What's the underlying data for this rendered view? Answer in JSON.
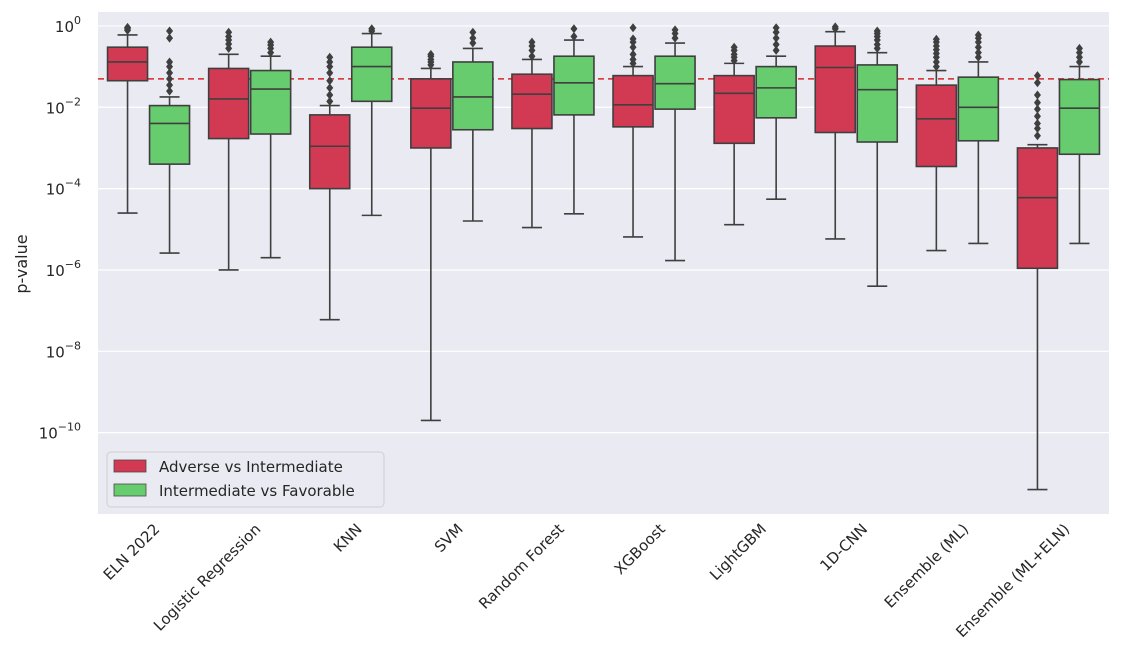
{
  "chart_data": {
    "type": "box",
    "ylabel": "p-value",
    "yscale": "log",
    "ylim": [
      1e-12,
      2.2
    ],
    "yticks": [
      {
        "value": 1,
        "base": "10",
        "exp": "0"
      },
      {
        "value": 0.01,
        "base": "10",
        "exp": "−2"
      },
      {
        "value": 0.0001,
        "base": "10",
        "exp": "−4"
      },
      {
        "value": 1e-06,
        "base": "10",
        "exp": "−6"
      },
      {
        "value": 1e-08,
        "base": "10",
        "exp": "−8"
      },
      {
        "value": 1e-10,
        "base": "10",
        "exp": "−10"
      }
    ],
    "reference_line": {
      "value": 0.05,
      "color": "#d62728",
      "style": "dashed"
    },
    "grid": true,
    "legend_position": "lower-left",
    "categories": [
      "ELN 2022",
      "Logistic Regression",
      "KNN",
      "SVM",
      "Random Forest",
      "XGBoost",
      "LightGBM",
      "1D-CNN",
      "Ensemble (ML)",
      "Ensemble (ML+ELN)"
    ],
    "series": [
      {
        "name": "Adverse vs Intermediate",
        "color": "#d23a53",
        "boxes": [
          {
            "whislo": 2.5e-05,
            "q1": 0.045,
            "med": 0.13,
            "q3": 0.3,
            "whishi": 0.6,
            "fliers": [
              0.78,
              0.85,
              0.92
            ]
          },
          {
            "whislo": 1e-06,
            "q1": 0.0017,
            "med": 0.016,
            "q3": 0.09,
            "whishi": 0.2,
            "fliers": [
              0.28,
              0.36,
              0.45,
              0.55,
              0.7
            ]
          },
          {
            "whislo": 6e-08,
            "q1": 0.0001,
            "med": 0.0011,
            "q3": 0.0065,
            "whishi": 0.011,
            "fliers": [
              0.014,
              0.02,
              0.03,
              0.045,
              0.07,
              0.1,
              0.13,
              0.17
            ]
          },
          {
            "whislo": 2e-10,
            "q1": 0.001,
            "med": 0.0095,
            "q3": 0.05,
            "whishi": 0.09,
            "fliers": [
              0.11,
              0.13,
              0.15,
              0.18,
              0.2
            ]
          },
          {
            "whislo": 1.1e-05,
            "q1": 0.003,
            "med": 0.021,
            "q3": 0.065,
            "whishi": 0.15,
            "fliers": [
              0.18,
              0.25,
              0.32,
              0.4
            ]
          },
          {
            "whislo": 6.5e-06,
            "q1": 0.0033,
            "med": 0.0115,
            "q3": 0.06,
            "whishi": 0.1,
            "fliers": [
              0.12,
              0.15,
              0.2,
              0.3,
              0.4,
              0.48,
              0.9
            ]
          },
          {
            "whislo": 1.3e-05,
            "q1": 0.0013,
            "med": 0.022,
            "q3": 0.06,
            "whishi": 0.12,
            "fliers": [
              0.14,
              0.17,
              0.2,
              0.25,
              0.3
            ]
          },
          {
            "whislo": 5.8e-06,
            "q1": 0.0024,
            "med": 0.095,
            "q3": 0.32,
            "whishi": 0.72,
            "fliers": [
              0.85,
              0.95
            ]
          },
          {
            "whislo": 3e-06,
            "q1": 0.00035,
            "med": 0.0052,
            "q3": 0.035,
            "whishi": 0.08,
            "fliers": [
              0.1,
              0.13,
              0.17,
              0.21,
              0.26,
              0.32,
              0.4,
              0.47
            ]
          },
          {
            "whislo": 4e-12,
            "q1": 1.1e-06,
            "med": 6e-05,
            "q3": 0.001,
            "whishi": 0.0012,
            "fliers": [
              0.002,
              0.003,
              0.004,
              0.006,
              0.009,
              0.013,
              0.02,
              0.04,
              0.06
            ]
          }
        ]
      },
      {
        "name": "Intermediate vs Favorable",
        "color": "#66cc6e",
        "boxes": [
          {
            "whislo": 2.6e-06,
            "q1": 0.0004,
            "med": 0.004,
            "q3": 0.011,
            "whishi": 0.018,
            "fliers": [
              0.025,
              0.035,
              0.05,
              0.07,
              0.1,
              0.13,
              0.5,
              0.75
            ]
          },
          {
            "whislo": 2e-06,
            "q1": 0.0022,
            "med": 0.028,
            "q3": 0.08,
            "whishi": 0.18,
            "fliers": [
              0.22,
              0.28,
              0.34,
              0.4
            ]
          },
          {
            "whislo": 2.2e-05,
            "q1": 0.014,
            "med": 0.1,
            "q3": 0.3,
            "whishi": 0.65,
            "fliers": [
              0.75,
              0.85
            ]
          },
          {
            "whislo": 1.6e-05,
            "q1": 0.0028,
            "med": 0.018,
            "q3": 0.13,
            "whishi": 0.28,
            "fliers": [
              0.38,
              0.5,
              0.7
            ]
          },
          {
            "whislo": 2.4e-05,
            "q1": 0.0065,
            "med": 0.04,
            "q3": 0.18,
            "whishi": 0.45,
            "fliers": [
              0.55,
              0.85
            ]
          },
          {
            "whislo": 1.7e-06,
            "q1": 0.009,
            "med": 0.038,
            "q3": 0.18,
            "whishi": 0.38,
            "fliers": [
              0.5,
              0.65,
              0.8
            ]
          },
          {
            "whislo": 5.5e-05,
            "q1": 0.0055,
            "med": 0.03,
            "q3": 0.1,
            "whishi": 0.18,
            "fliers": [
              0.25,
              0.35,
              0.5,
              0.7,
              0.9
            ]
          },
          {
            "whislo": 4e-07,
            "q1": 0.0014,
            "med": 0.027,
            "q3": 0.11,
            "whishi": 0.22,
            "fliers": [
              0.28,
              0.35,
              0.45,
              0.55,
              0.65,
              0.75
            ]
          },
          {
            "whislo": 4.5e-06,
            "q1": 0.0015,
            "med": 0.01,
            "q3": 0.055,
            "whishi": 0.13,
            "fliers": [
              0.17,
              0.22,
              0.3,
              0.4,
              0.5,
              0.6
            ]
          },
          {
            "whislo": 4.5e-06,
            "q1": 0.0007,
            "med": 0.0095,
            "q3": 0.048,
            "whishi": 0.1,
            "fliers": [
              0.13,
              0.17,
              0.22,
              0.28
            ]
          }
        ]
      }
    ]
  }
}
